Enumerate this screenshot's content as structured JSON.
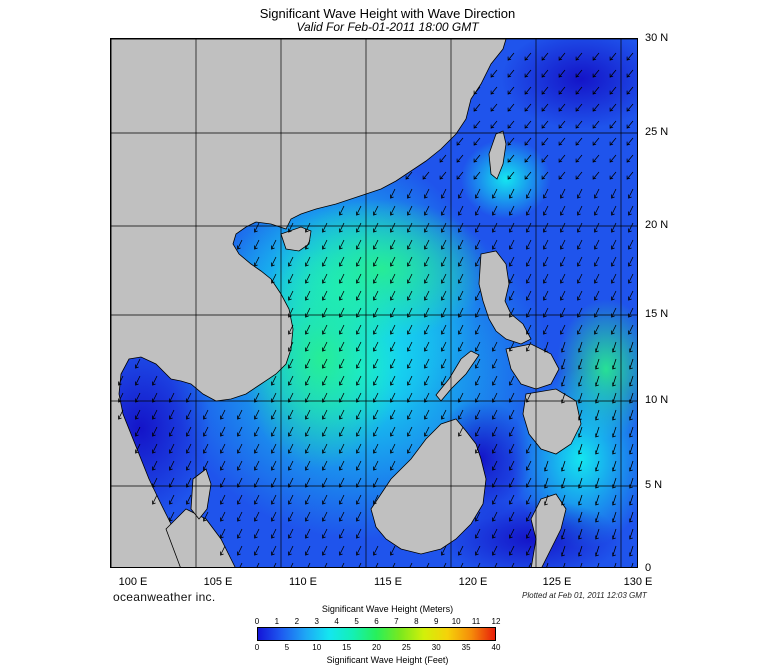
{
  "title": "Significant Wave Height with Wave Direction",
  "subtitle": "Valid For Feb-01-2011 18:00 GMT",
  "brand": "oceanweather inc.",
  "plotted": "Plotted at Feb 01, 2011 12:03 GMT",
  "lat_labels": [
    "30 N",
    "25 N",
    "20 N",
    "15 N",
    "10 N",
    "5 N",
    "0"
  ],
  "lon_labels": [
    "100 E",
    "105 E",
    "110 E",
    "115 E",
    "120 E",
    "125 E",
    "130 E"
  ],
  "colorbar": {
    "title_meters": "Significant Wave Height (Meters)",
    "title_feet": "Significant Wave Height (Feet)",
    "meters_ticks": [
      "0",
      "1",
      "2",
      "3",
      "4",
      "5",
      "6",
      "7",
      "8",
      "9",
      "10",
      "11",
      "12"
    ],
    "feet_ticks": [
      "0",
      "5",
      "10",
      "15",
      "20",
      "25",
      "30",
      "35",
      "40"
    ]
  },
  "colors": {
    "land": "#c0c0c0",
    "deep_blue": "#1f3fe0",
    "mid_blue": "#1e8cf5",
    "cyan": "#14e6f0",
    "green": "#28f08c",
    "arrow": "#000000"
  }
}
